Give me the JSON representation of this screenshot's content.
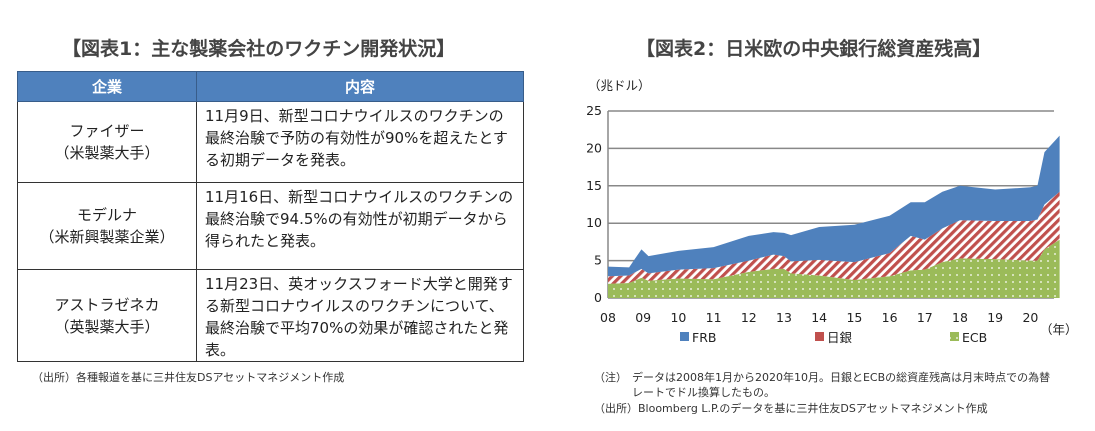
{
  "figure1": {
    "title": "【図表1：主な製薬会社のワクチン開発状況】",
    "headers": [
      "企業",
      "内容"
    ],
    "rows": [
      {
        "company": "ファイザー",
        "company_sub": "（米製薬大手）",
        "content": "11月9日、新型コロナウイルスのワクチンの最終治験で予防の有効性が90%を超えたとする初期データを発表。"
      },
      {
        "company": "モデルナ",
        "company_sub": "（米新興製薬企業）",
        "content": "11月16日、新型コロナウイルスのワクチンの最終治験で94.5%の有効性が初期データから得られたと発表。"
      },
      {
        "company": "アストラゼネカ",
        "company_sub": "（英製薬大手）",
        "content": "11月23日、英オックスフォード大学と開発する新型コロナウイルスのワクチンについて、最終治験で平均70%の効果が確認されたと発表。"
      }
    ],
    "source": "（出所）各種報道を基に三井住友DSアセットマネジメント作成"
  },
  "figure2": {
    "title": "【図表2：日米欧の中央銀行総資産残高】",
    "note_label": "（注）",
    "note_line1": "データは2008年1月から2020年10月。日銀とECBの総資産残高は月末時点での為替",
    "note_line2": "レートでドル換算したもの。",
    "source": "（出所）Bloomberg L.P.のデータを基に三井住友DSアセットマネジメント作成"
  },
  "chart_data": {
    "type": "area",
    "stacked": true,
    "ylabel": "（兆ドル）",
    "xlabel": "（年）",
    "ylim": [
      0,
      25
    ],
    "yticks": [
      "0",
      "5",
      "10",
      "15",
      "20",
      "25"
    ],
    "xticks": [
      "08",
      "09",
      "10",
      "11",
      "12",
      "13",
      "14",
      "15",
      "16",
      "17",
      "18",
      "19",
      "20"
    ],
    "grid": true,
    "legend_position": "bottom",
    "x": [
      2008.0,
      2008.6,
      2008.95,
      2009.15,
      2010.0,
      2011.0,
      2012.0,
      2012.7,
      2013.0,
      2013.2,
      2014.0,
      2015.0,
      2016.0,
      2016.6,
      2017.0,
      2017.5,
      2018.0,
      2019.0,
      2020.0,
      2020.2,
      2020.4,
      2020.83
    ],
    "series": [
      {
        "name": "ECB",
        "color": "#9bbb59",
        "values": [
          1.9,
          2.0,
          2.7,
          2.3,
          2.6,
          2.5,
          3.5,
          3.9,
          3.9,
          3.3,
          3.0,
          2.4,
          2.9,
          3.7,
          3.8,
          4.8,
          5.3,
          5.2,
          5.0,
          5.0,
          6.5,
          7.8
        ]
      },
      {
        "name": "日銀",
        "color": "#c0504d",
        "values": [
          1.0,
          1.0,
          1.2,
          1.0,
          1.2,
          1.5,
          1.5,
          1.9,
          1.7,
          1.6,
          2.1,
          2.4,
          3.1,
          4.6,
          4.0,
          4.5,
          5.1,
          5.1,
          5.3,
          5.5,
          6.0,
          6.4
        ]
      },
      {
        "name": "FRB",
        "color": "#4f81bd",
        "values": [
          1.3,
          1.1,
          2.6,
          2.3,
          2.5,
          2.8,
          3.3,
          3.0,
          3.1,
          3.5,
          4.4,
          5.0,
          5.0,
          4.5,
          5.0,
          4.9,
          4.6,
          4.2,
          4.5,
          4.5,
          7.0,
          7.5
        ]
      }
    ]
  }
}
